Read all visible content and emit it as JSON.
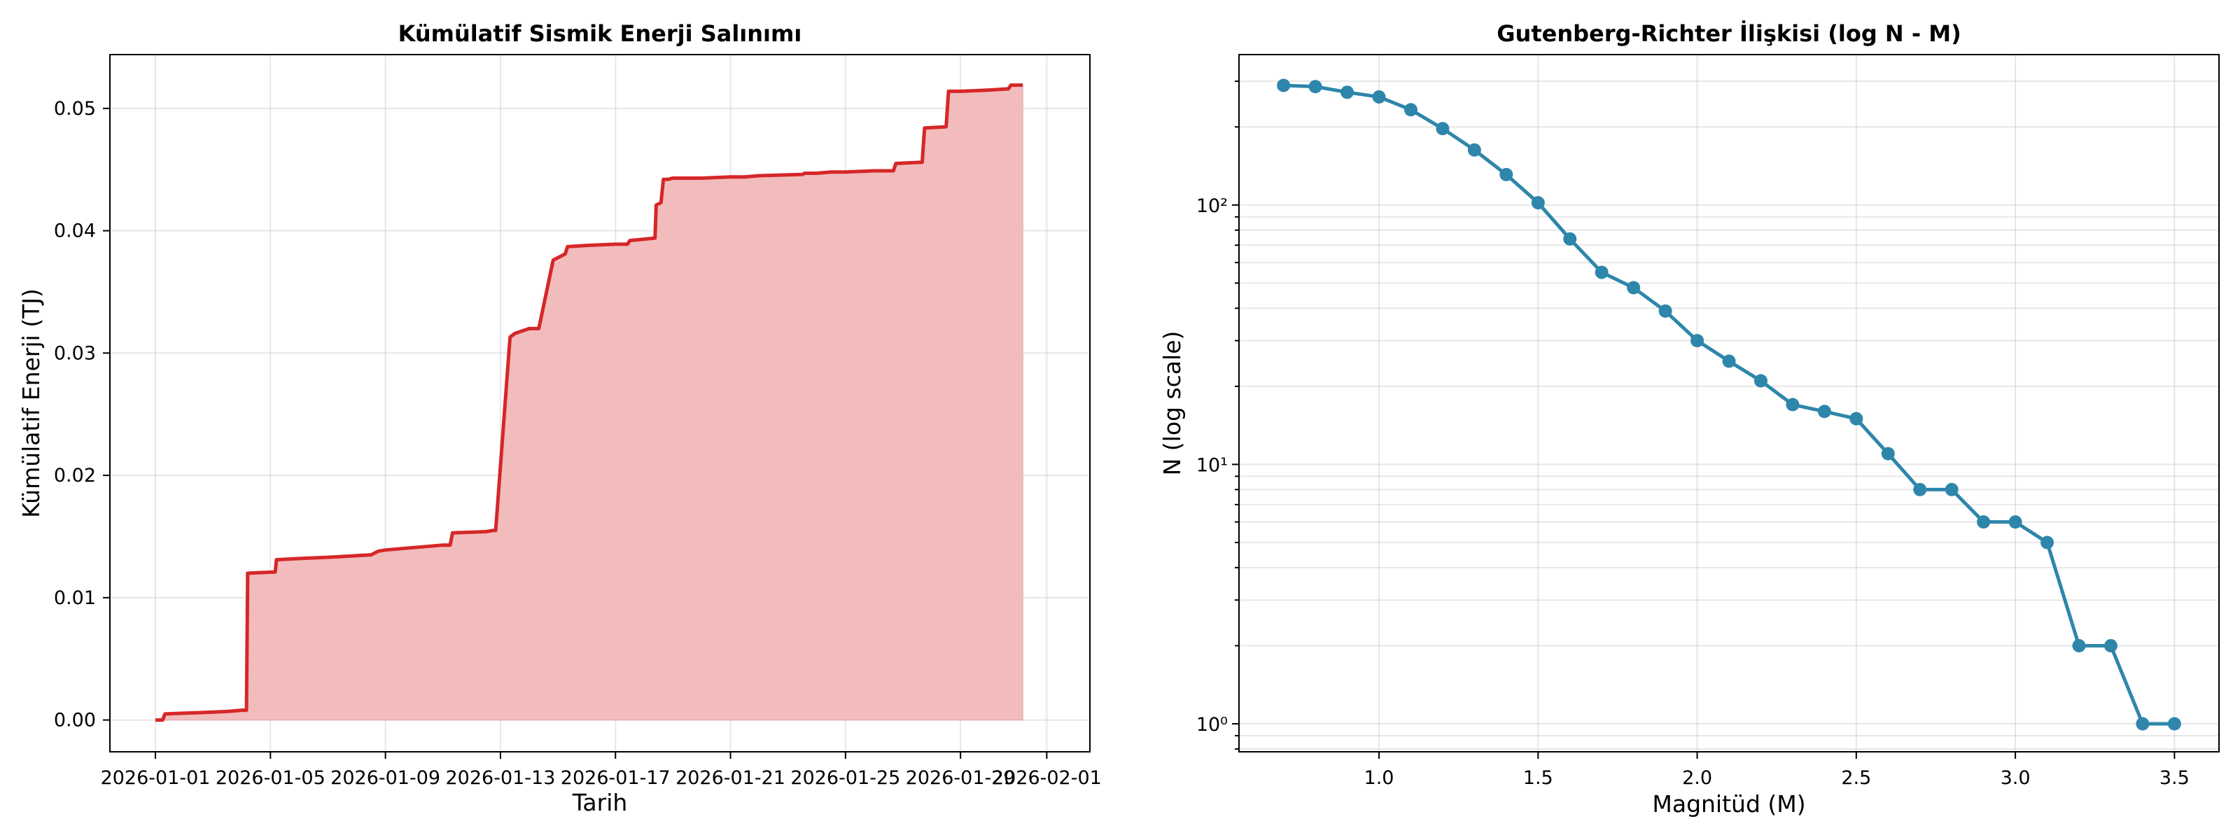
{
  "chart_data": [
    {
      "type": "area",
      "title": "Kümülatif Sismik Enerji Salınımı",
      "xlabel": "Tarih",
      "ylabel": "Kümülatif Enerji (TJ)",
      "x_ticks": [
        "2026-01-01",
        "2026-01-05",
        "2026-01-09",
        "2026-01-13",
        "2026-01-17",
        "2026-01-21",
        "2026-01-25",
        "2026-01-29",
        "2026-02-01"
      ],
      "y_ticks": [
        "0.00",
        "0.01",
        "0.02",
        "0.03",
        "0.04",
        "0.05"
      ],
      "xlim": [
        "2025-12-30T10:00",
        "2026-02-02T12:00"
      ],
      "ylim": [
        -0.0026,
        0.0544
      ],
      "grid": true,
      "line_color": "#d62728",
      "fill_color": "#f2bcbd",
      "series": [
        {
          "x": [
            "2026-01-01T00:00",
            "2026-01-01T06:00",
            "2026-01-01T08:00",
            "2026-01-02T12:00",
            "2026-01-03T12:00",
            "2026-01-04T00:00",
            "2026-01-04T04:00",
            "2026-01-04T05:00",
            "2026-01-05T04:00",
            "2026-01-05T05:00",
            "2026-01-06T00:00",
            "2026-01-07T00:00",
            "2026-01-08T12:00",
            "2026-01-08T18:00",
            "2026-01-09T00:00",
            "2026-01-10T00:00",
            "2026-01-11T00:00",
            "2026-01-11T06:00",
            "2026-01-11T08:00",
            "2026-01-12T12:00",
            "2026-01-12T18:00",
            "2026-01-12T20:00",
            "2026-01-13T08:00",
            "2026-01-13T12:00",
            "2026-01-14T00:00",
            "2026-01-14T08:00",
            "2026-01-14T20:00",
            "2026-01-15T06:00",
            "2026-01-15T08:00",
            "2026-01-16T00:00",
            "2026-01-17T00:00",
            "2026-01-17T10:00",
            "2026-01-17T12:00",
            "2026-01-18T09:00",
            "2026-01-18T10:00",
            "2026-01-18T14:00",
            "2026-01-18T16:00",
            "2026-01-18T20:00",
            "2026-01-19T00:00",
            "2026-01-20T00:00",
            "2026-01-21T00:00",
            "2026-01-21T12:00",
            "2026-01-22T00:00",
            "2026-01-23T12:00",
            "2026-01-23T14:00",
            "2026-01-24T00:00",
            "2026-01-24T12:00",
            "2026-01-25T00:00",
            "2026-01-26T00:00",
            "2026-01-26T16:00",
            "2026-01-26T18:00",
            "2026-01-27T16:00",
            "2026-01-27T18:00",
            "2026-01-28T12:00",
            "2026-01-28T14:00",
            "2026-01-29T00:00",
            "2026-01-30T00:00",
            "2026-01-30T16:00",
            "2026-01-30T18:00",
            "2026-01-31T04:00"
          ],
          "y": [
            0.0,
            0.0,
            0.0005,
            0.0006,
            0.0007,
            0.0008,
            0.0008,
            0.012,
            0.0121,
            0.0131,
            0.0132,
            0.0133,
            0.0135,
            0.0138,
            0.0139,
            0.0141,
            0.0143,
            0.0143,
            0.0153,
            0.0154,
            0.0155,
            0.0155,
            0.0313,
            0.0316,
            0.032,
            0.032,
            0.0376,
            0.0381,
            0.0387,
            0.0388,
            0.0389,
            0.0389,
            0.0392,
            0.0394,
            0.0421,
            0.0423,
            0.0442,
            0.0442,
            0.0443,
            0.0443,
            0.0444,
            0.0444,
            0.0445,
            0.0446,
            0.0447,
            0.0447,
            0.0448,
            0.0448,
            0.0449,
            0.0449,
            0.0455,
            0.0456,
            0.0484,
            0.0485,
            0.0514,
            0.0514,
            0.0515,
            0.0516,
            0.0519,
            0.0519
          ]
        }
      ]
    },
    {
      "type": "line",
      "title": "Gutenberg-Richter İlişkisi (log N - M)",
      "xlabel": "Magnitüd (M)",
      "ylabel": "N (log scale)",
      "y_scale": "log",
      "x_ticks": [
        "1.0",
        "1.5",
        "2.0",
        "2.5",
        "3.0",
        "3.5"
      ],
      "y_ticks": [
        "10⁰",
        "10¹",
        "10²"
      ],
      "xlim": [
        0.56,
        3.64
      ],
      "ylim": [
        0.78,
        380
      ],
      "grid": true,
      "line_color": "#2e86ab",
      "series": [
        {
          "x": [
            0.7,
            0.8,
            0.9,
            1.0,
            1.1,
            1.2,
            1.3,
            1.4,
            1.5,
            1.6,
            1.7,
            1.8,
            1.9,
            2.0,
            2.1,
            2.2,
            2.3,
            2.4,
            2.5,
            2.6,
            2.7,
            2.8,
            2.9,
            3.0,
            3.1,
            3.2,
            3.3,
            3.4,
            3.5
          ],
          "y": [
            289,
            286,
            272,
            261,
            233,
            197,
            163,
            131,
            102,
            74,
            55,
            48,
            39,
            30,
            25,
            21,
            17,
            16,
            15,
            11,
            8,
            8,
            6,
            6,
            5,
            2,
            2,
            1,
            1
          ]
        }
      ]
    }
  ]
}
